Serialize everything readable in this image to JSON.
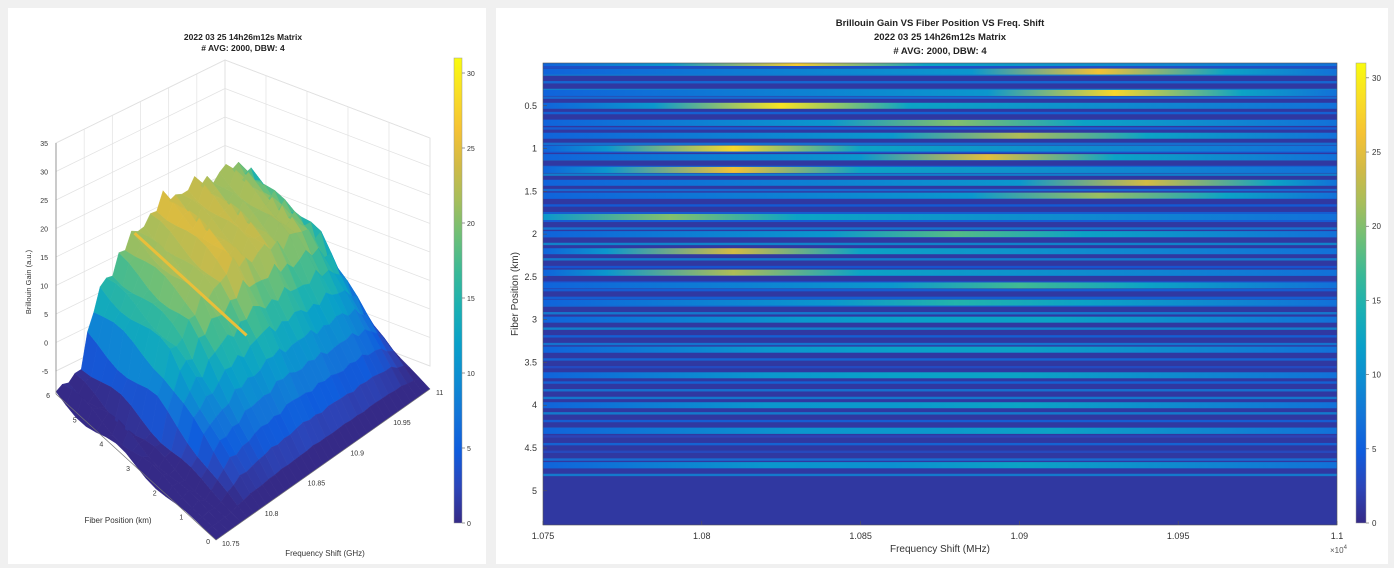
{
  "colors": {
    "parula": [
      "#352a87",
      "#2c45b9",
      "#0f5cdd",
      "#1374d8",
      "#0d8cd2",
      "#09a0c9",
      "#1ab0b3",
      "#39b997",
      "#6cbf78",
      "#a5be5c",
      "#d1ba46",
      "#f5c234",
      "#f9de26",
      "#f9fb0e"
    ],
    "figure_bg": "#f0f0f0",
    "axes_bg": "#ffffff"
  },
  "chart_data": [
    {
      "type": "surface",
      "title": "2022 03 25 14h26m12s Matrix",
      "subtitle": "# AVG: 2000, DBW: 4",
      "xlabel": "Frequency Shift (GHz)",
      "ylabel": "Fiber Position  (km)",
      "zlabel": "Brillouin Gain (a.u.)",
      "x_ticks": [
        "10.75",
        "10.8",
        "10.85",
        "10.9",
        "10.95",
        "11"
      ],
      "y_ticks": [
        "0",
        "1",
        "2",
        "3",
        "4",
        "5",
        "6"
      ],
      "z_ticks": [
        "-5",
        "0",
        "5",
        "10",
        "15",
        "20",
        "25",
        "30",
        "35"
      ],
      "xlim": [
        10.75,
        11
      ],
      "ylim": [
        0,
        6
      ],
      "zlim": [
        -5,
        35
      ],
      "colorbar": {
        "range": [
          0,
          31
        ],
        "ticks": [
          "0",
          "5",
          "10",
          "15",
          "20",
          "25",
          "30"
        ]
      },
      "grid": true,
      "ridge_profile": {
        "freq_ghz": [
          10.75,
          10.775,
          10.8,
          10.825,
          10.85,
          10.875,
          10.9,
          10.925,
          10.95,
          10.975,
          11
        ],
        "gain": [
          -1,
          0,
          14,
          19,
          22,
          24,
          23,
          22,
          21,
          19,
          3
        ]
      }
    },
    {
      "type": "heatmap",
      "title": "Brillouin Gain VS Fiber Position VS Freq. Shift",
      "subtitle1": "2022 03 25 14h26m12s Matrix",
      "subtitle2": "# AVG: 2000, DBW: 4",
      "xlabel": "Frequency Shift (MHz)",
      "ylabel": "Fiber Position (km)",
      "x_ticks": [
        "1.075",
        "1.08",
        "1.085",
        "1.09",
        "1.095",
        "1.1"
      ],
      "x_multiplier": "×10",
      "x_exponent": "4",
      "y_ticks": [
        "0.5",
        "1",
        "1.5",
        "2",
        "2.5",
        "3",
        "3.5",
        "4",
        "4.5",
        "5"
      ],
      "xlim": [
        10750,
        11000
      ],
      "ylim": [
        0,
        5.4
      ],
      "colorbar": {
        "range": [
          0,
          31
        ],
        "ticks": [
          "0",
          "5",
          "10",
          "15",
          "20",
          "25",
          "30"
        ]
      },
      "bright_bands": [
        {
          "km": 0.0,
          "peak_mhz": 10830,
          "gain": 27
        },
        {
          "km": 0.1,
          "peak_mhz": 10925,
          "gain": 26
        },
        {
          "km": 0.35,
          "peak_mhz": 10930,
          "gain": 28
        },
        {
          "km": 0.5,
          "peak_mhz": 10825,
          "gain": 29
        },
        {
          "km": 0.7,
          "peak_mhz": 10880,
          "gain": 20
        },
        {
          "km": 0.85,
          "peak_mhz": 10900,
          "gain": 22
        },
        {
          "km": 1.0,
          "peak_mhz": 10810,
          "gain": 28
        },
        {
          "km": 1.1,
          "peak_mhz": 10890,
          "gain": 25
        },
        {
          "km": 1.25,
          "peak_mhz": 10810,
          "gain": 26
        },
        {
          "km": 1.4,
          "peak_mhz": 10940,
          "gain": 24
        },
        {
          "km": 1.55,
          "peak_mhz": 10925,
          "gain": 21
        },
        {
          "km": 1.8,
          "peak_mhz": 10790,
          "gain": 20
        },
        {
          "km": 2.0,
          "peak_mhz": 10880,
          "gain": 18
        },
        {
          "km": 2.2,
          "peak_mhz": 10810,
          "gain": 24
        },
        {
          "km": 2.45,
          "peak_mhz": 10810,
          "gain": 22
        },
        {
          "km": 2.6,
          "peak_mhz": 10900,
          "gain": 17
        },
        {
          "km": 2.8,
          "peak_mhz": 10880,
          "gain": 15
        },
        {
          "km": 3.0,
          "peak_mhz": 10870,
          "gain": 12
        },
        {
          "km": 3.35,
          "peak_mhz": 10860,
          "gain": 12
        },
        {
          "km": 3.65,
          "peak_mhz": 10860,
          "gain": 12
        },
        {
          "km": 4.0,
          "peak_mhz": 10860,
          "gain": 11
        },
        {
          "km": 4.3,
          "peak_mhz": 10870,
          "gain": 11
        },
        {
          "km": 4.7,
          "peak_mhz": 10860,
          "gain": 10
        }
      ]
    }
  ]
}
